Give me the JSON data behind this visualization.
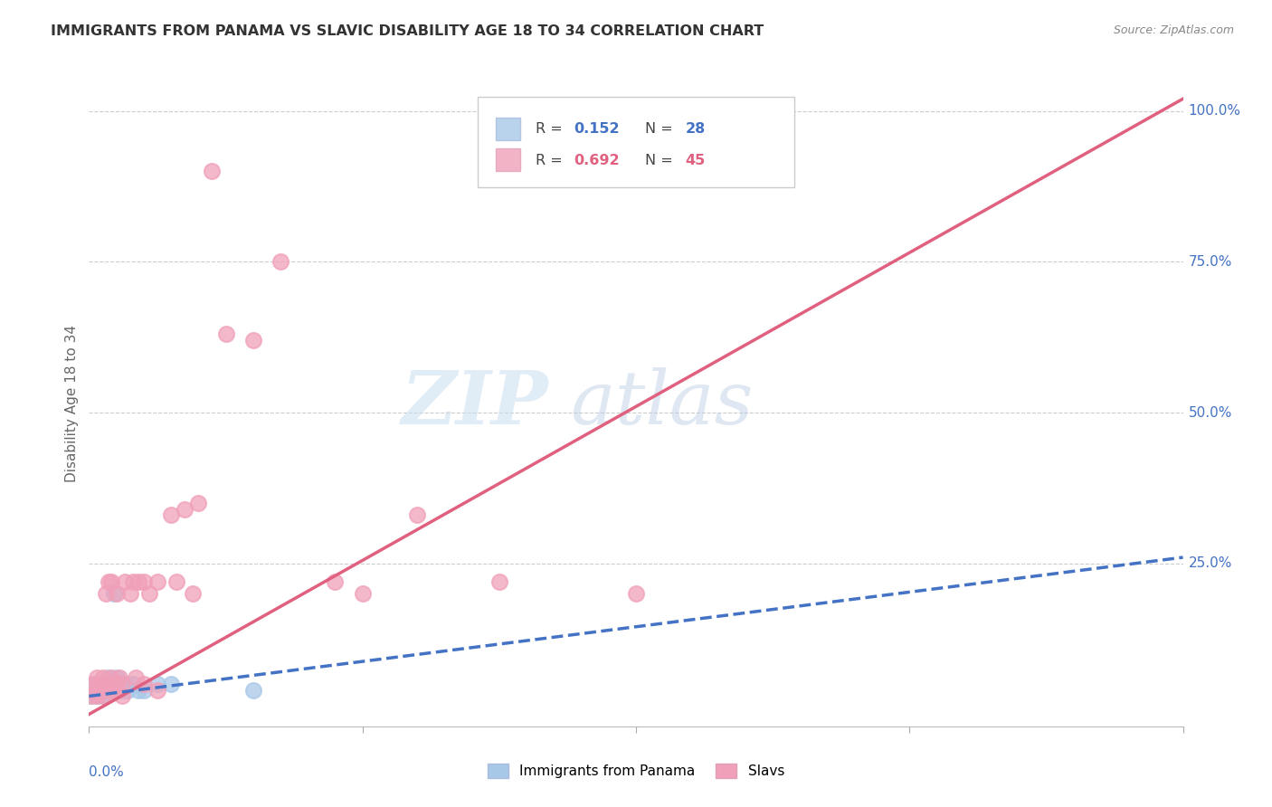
{
  "title": "IMMIGRANTS FROM PANAMA VS SLAVIC DISABILITY AGE 18 TO 34 CORRELATION CHART",
  "source": "Source: ZipAtlas.com",
  "ylabel": "Disability Age 18 to 34",
  "xlim": [
    0.0,
    0.4
  ],
  "ylim": [
    -0.02,
    1.05
  ],
  "panama_R": 0.152,
  "panama_N": 28,
  "slavic_R": 0.692,
  "slavic_N": 45,
  "panama_color": "#a8c8e8",
  "slavic_color": "#f0a0b8",
  "panama_line_color": "#4472c4",
  "slavic_line_color": "#e06080",
  "watermark_zip": "ZIP",
  "watermark_atlas": "atlas",
  "panama_scatter_x": [
    0.001,
    0.002,
    0.002,
    0.003,
    0.003,
    0.004,
    0.004,
    0.005,
    0.005,
    0.006,
    0.006,
    0.007,
    0.007,
    0.008,
    0.008,
    0.009,
    0.01,
    0.01,
    0.011,
    0.012,
    0.013,
    0.014,
    0.016,
    0.018,
    0.02,
    0.025,
    0.03,
    0.06
  ],
  "panama_scatter_y": [
    0.03,
    0.04,
    0.05,
    0.03,
    0.04,
    0.04,
    0.05,
    0.03,
    0.05,
    0.04,
    0.05,
    0.04,
    0.06,
    0.04,
    0.05,
    0.2,
    0.04,
    0.06,
    0.05,
    0.04,
    0.05,
    0.04,
    0.05,
    0.04,
    0.04,
    0.05,
    0.05,
    0.04
  ],
  "slavic_scatter_x": [
    0.001,
    0.002,
    0.002,
    0.003,
    0.003,
    0.004,
    0.005,
    0.005,
    0.006,
    0.006,
    0.007,
    0.008,
    0.008,
    0.009,
    0.01,
    0.01,
    0.011,
    0.012,
    0.013,
    0.015,
    0.016,
    0.017,
    0.018,
    0.02,
    0.022,
    0.025,
    0.03,
    0.032,
    0.035,
    0.038,
    0.04,
    0.045,
    0.05,
    0.06,
    0.07,
    0.09,
    0.1,
    0.12,
    0.15,
    0.2,
    0.005,
    0.008,
    0.012,
    0.02,
    0.025
  ],
  "slavic_scatter_y": [
    0.03,
    0.04,
    0.05,
    0.03,
    0.06,
    0.05,
    0.04,
    0.06,
    0.05,
    0.2,
    0.22,
    0.06,
    0.22,
    0.04,
    0.05,
    0.2,
    0.06,
    0.05,
    0.22,
    0.2,
    0.22,
    0.06,
    0.22,
    0.22,
    0.2,
    0.22,
    0.33,
    0.22,
    0.34,
    0.2,
    0.35,
    0.9,
    0.63,
    0.62,
    0.75,
    0.22,
    0.2,
    0.33,
    0.22,
    0.2,
    0.03,
    0.04,
    0.03,
    0.05,
    0.04
  ],
  "slavic_line_x": [
    0.0,
    0.4
  ],
  "slavic_line_y": [
    0.0,
    1.02
  ],
  "panama_line_x": [
    0.0,
    0.4
  ],
  "panama_line_y": [
    0.03,
    0.26
  ],
  "legend_R_text_color": "#4472c4",
  "legend_N_text_color": "#4472c4",
  "right_ytick_labels": [
    "25.0%",
    "50.0%",
    "75.0%",
    "100.0%"
  ],
  "right_ytick_vals": [
    0.25,
    0.5,
    0.75,
    1.0
  ],
  "bottom_legend_labels": [
    "Immigrants from Panama",
    "Slavs"
  ]
}
